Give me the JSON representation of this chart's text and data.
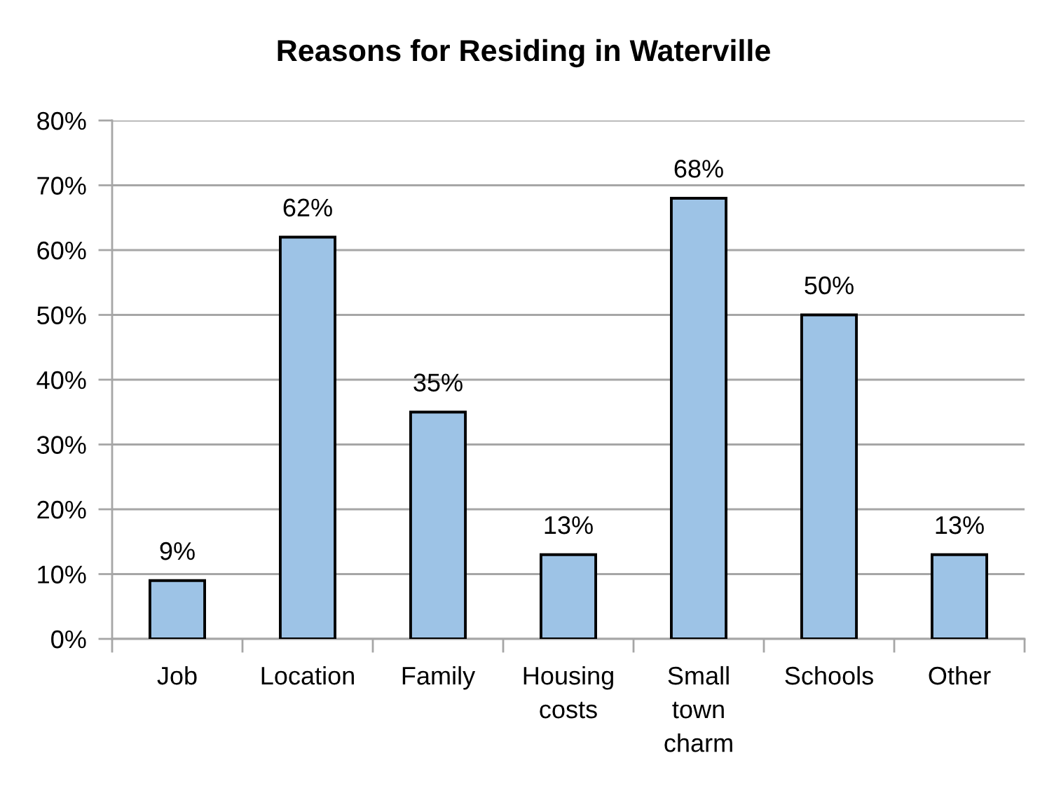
{
  "chart_data": {
    "type": "bar",
    "title": "Reasons for Residing in Waterville",
    "categories": [
      "Job",
      "Location",
      "Family",
      "Housing\ncosts",
      "Small\ntown\ncharm",
      "Schools",
      "Other"
    ],
    "values": [
      9,
      62,
      35,
      13,
      68,
      50,
      13
    ],
    "value_labels": [
      "9%",
      "62%",
      "35%",
      "13%",
      "68%",
      "50%",
      "13%"
    ],
    "color": "#9dc3e6",
    "ylim": [
      0,
      80
    ],
    "yticks": [
      {
        "value": 0,
        "label": "0%"
      },
      {
        "value": 10,
        "label": "10%"
      },
      {
        "value": 20,
        "label": "20%"
      },
      {
        "value": 30,
        "label": "30%"
      },
      {
        "value": 40,
        "label": "40%"
      },
      {
        "value": 50,
        "label": "50%"
      },
      {
        "value": 60,
        "label": "60%"
      },
      {
        "value": 70,
        "label": "70%"
      },
      {
        "value": 80,
        "label": "80%"
      }
    ],
    "grid": "y"
  }
}
